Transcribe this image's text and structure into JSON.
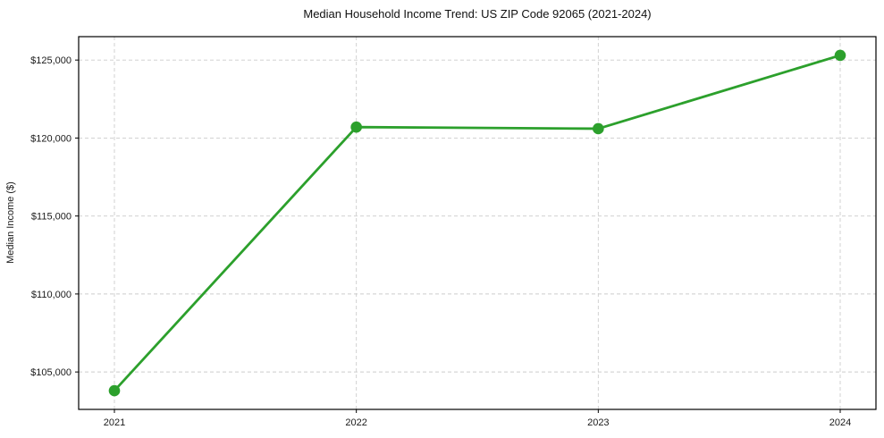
{
  "title": "Median Household Income Trend: US ZIP Code 92065 (2021-2024)",
  "chart_data": {
    "type": "line",
    "title": "Median Household Income Trend: US ZIP Code 92065 (2021-2024)",
    "xlabel": "",
    "ylabel": "Median Income ($)",
    "categories": [
      "2021",
      "2022",
      "2023",
      "2024"
    ],
    "series": [
      {
        "name": "Median Household Income",
        "values": [
          103800,
          120700,
          120600,
          125300
        ]
      }
    ],
    "yticks": [
      105000,
      110000,
      115000,
      120000,
      125000
    ],
    "ytick_labels": [
      "$105,000",
      "$110,000",
      "$115,000",
      "$120,000",
      "$125,000"
    ],
    "xtick_labels": [
      "2021",
      "2022",
      "2023",
      "2024"
    ],
    "ylim": [
      102600,
      126500
    ],
    "grid": true,
    "grid_style": "dashed",
    "legend": "none",
    "colors": {
      "line": "#2ca02c",
      "marker": "#2ca02c",
      "grid": "#cccccc",
      "text": "#1a1a1a",
      "border": "#000000",
      "background": "#ffffff"
    }
  }
}
